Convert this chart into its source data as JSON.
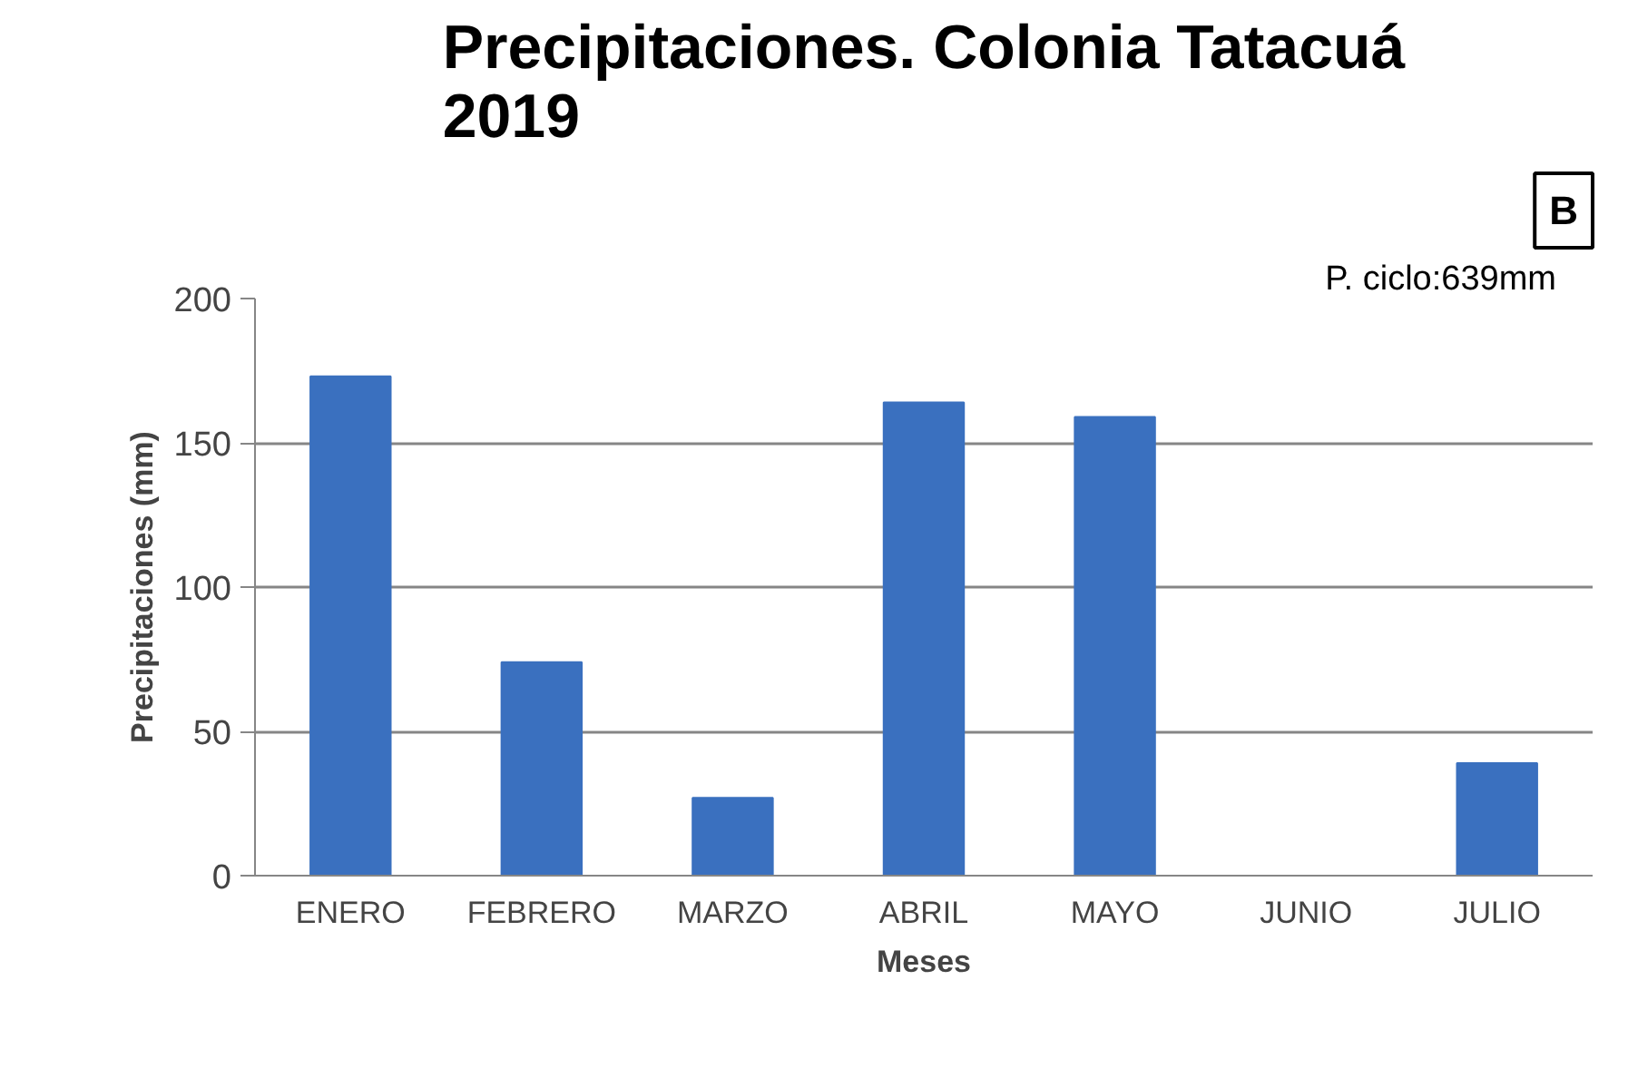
{
  "chart_data": {
    "type": "bar",
    "title": "Precipitaciones. Colonia Tatacuá\n2019",
    "xlabel": "Meses",
    "ylabel": "Precipitaciones (mm)",
    "categories": [
      "ENERO",
      "FEBRERO",
      "MARZO",
      "ABRIL",
      "MAYO",
      "JUNIO",
      "JULIO"
    ],
    "values": [
      173,
      74,
      27,
      164,
      159,
      0,
      39
    ],
    "color": "#3a70bf",
    "ylim": [
      0,
      200
    ],
    "yticks": [
      0,
      50,
      100,
      150,
      200
    ],
    "grid": "y",
    "annotations": [
      "P. ciclo:639mm",
      "B"
    ]
  }
}
